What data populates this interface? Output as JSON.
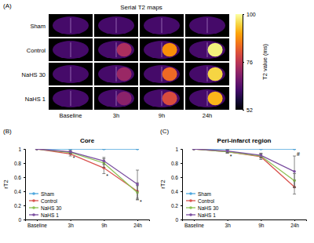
{
  "panel_a": {
    "label": "(A)",
    "title": "Serial T2 maps",
    "rows": [
      "Sham",
      "Control",
      "NaHS 30",
      "NaHS 1"
    ],
    "columns": [
      "Baseline",
      "3h",
      "9h",
      "24h"
    ],
    "tissue_t2": 62,
    "lesion_t2": [
      [
        62,
        62,
        62,
        62
      ],
      [
        62,
        74,
        88,
        98
      ],
      [
        62,
        72,
        84,
        95
      ],
      [
        62,
        70,
        80,
        92
      ]
    ],
    "colorbar": {
      "label": "T2 value (ms)",
      "range": [
        52,
        100
      ],
      "ticks": [
        52,
        76,
        100
      ]
    }
  },
  "chart_data": [
    {
      "type": "line",
      "panel": "(B)",
      "title": "Core",
      "y_label": "rT2",
      "categories": [
        "Baseline",
        "3h",
        "9h",
        "24h"
      ],
      "ylim": [
        0,
        1
      ],
      "yticks": [
        0,
        0.2,
        0.4,
        0.6,
        0.8,
        1
      ],
      "legend": "lower left",
      "marker": "circle",
      "series": [
        {
          "name": "Sham",
          "color": "#4ea7de",
          "values": [
            1,
            1,
            1,
            1
          ],
          "errors": [
            0,
            0,
            0,
            0
          ]
        },
        {
          "name": "Control",
          "color": "#d9534f",
          "values": [
            1,
            0.93,
            0.73,
            0.4
          ],
          "errors": [
            0,
            0.03,
            0.08,
            0.12
          ]
        },
        {
          "name": "NaHS 30",
          "color": "#8cc152",
          "values": [
            1,
            0.95,
            0.8,
            0.38
          ],
          "errors": [
            0,
            0.02,
            0.06,
            0.1
          ]
        },
        {
          "name": "NaHS 1",
          "color": "#7b4fa0",
          "values": [
            1,
            0.96,
            0.83,
            0.5
          ],
          "errors": [
            0,
            0.02,
            0.05,
            0.2
          ]
        }
      ],
      "annotations": [
        {
          "text": "*",
          "x": "3h",
          "y": 0.88
        },
        {
          "text": "*",
          "x": "9h",
          "y": 0.62
        },
        {
          "text": "*",
          "x": "24h",
          "y": 0.26
        }
      ]
    },
    {
      "type": "line",
      "panel": "(C)",
      "title": "Peri-infarct region",
      "y_label": "rT2",
      "categories": [
        "Baseline",
        "3h",
        "9h",
        "24h"
      ],
      "ylim": [
        0,
        1
      ],
      "yticks": [
        0,
        0.2,
        0.4,
        0.6,
        0.8,
        1
      ],
      "legend": "lower left",
      "marker": "circle",
      "series": [
        {
          "name": "Sham",
          "color": "#4ea7de",
          "values": [
            1,
            1,
            1,
            1
          ],
          "errors": [
            0,
            0,
            0,
            0
          ]
        },
        {
          "name": "Control",
          "color": "#d9534f",
          "values": [
            1,
            0.96,
            0.89,
            0.46
          ],
          "errors": [
            0,
            0.02,
            0.04,
            0.1
          ]
        },
        {
          "name": "NaHS 30",
          "color": "#8cc152",
          "values": [
            1,
            0.96,
            0.9,
            0.55
          ],
          "errors": [
            0,
            0.02,
            0.03,
            0.1
          ]
        },
        {
          "name": "NaHS 1",
          "color": "#7b4fa0",
          "values": [
            1,
            0.97,
            0.91,
            0.68
          ],
          "errors": [
            0,
            0.02,
            0.03,
            0.22
          ]
        }
      ],
      "annotations": [
        {
          "text": "*",
          "x": "3h",
          "y": 0.9
        },
        {
          "text": "#",
          "x": "24h",
          "y": 0.93
        }
      ]
    }
  ]
}
